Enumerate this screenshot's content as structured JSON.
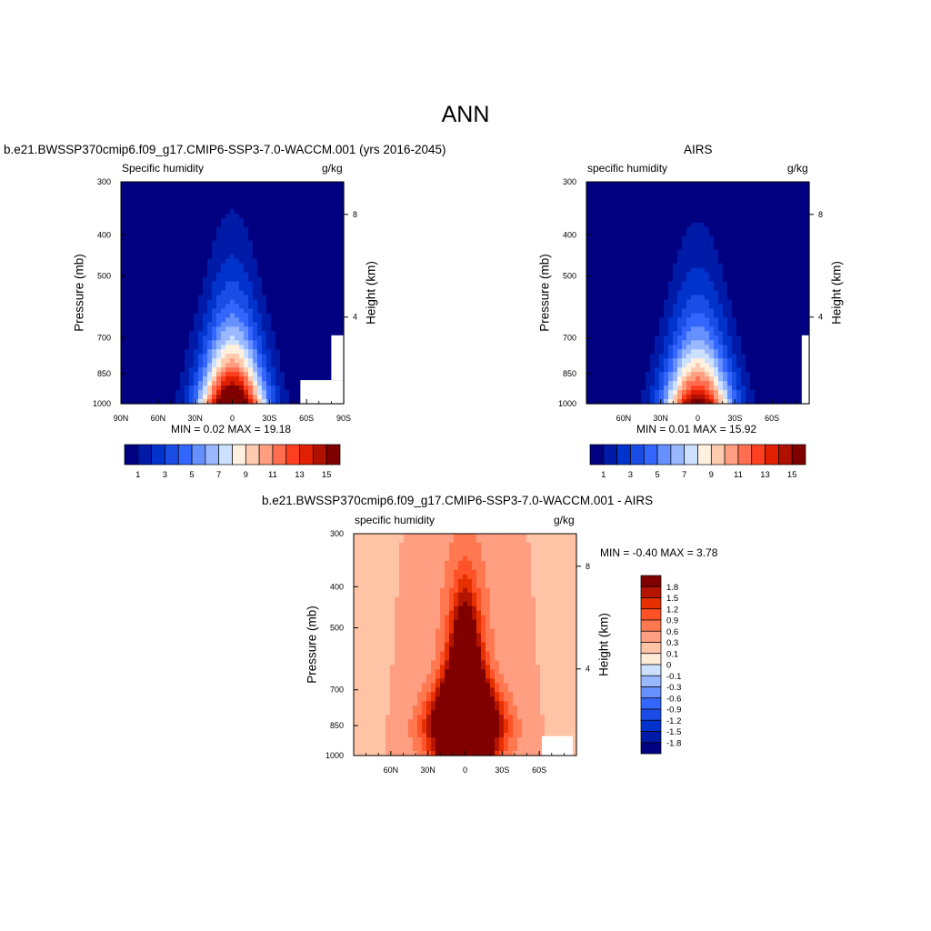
{
  "page_title": "ANN",
  "colors": {
    "seq_scale": [
      "#000080",
      "#001aa8",
      "#0033cc",
      "#1a4de6",
      "#3366ff",
      "#6690ff",
      "#99b8ff",
      "#cce0ff",
      "#fff0e0",
      "#ffcbb0",
      "#ff9e80",
      "#ff6e50",
      "#ff4020",
      "#e02000",
      "#b01000",
      "#800000"
    ],
    "diff_scale": [
      "#000080",
      "#001aa8",
      "#0033cc",
      "#1a4de6",
      "#3366ff",
      "#6690ff",
      "#99b8ff",
      "#cce0ff",
      "#ffebd7",
      "#ffc4a6",
      "#ff9e80",
      "#ff7850",
      "#ff5228",
      "#e63000",
      "#b41400",
      "#800000"
    ]
  },
  "chart_data": [
    {
      "type": "heatmap",
      "id": "model",
      "title": "b.e21.BWSSP370cmip6.f09_g17.CMIP6-SSP3-7.0-WACCM.001 (yrs 2016-2045)",
      "left_label": "Specific humidity",
      "unit_label": "g/kg",
      "ylabel": "Pressure (mb)",
      "ylabel_right": "Height (km)",
      "x_ticks": [
        "90N",
        "60N",
        "30N",
        "0",
        "30S",
        "60S",
        "90S"
      ],
      "y_ticks": [
        "300",
        "400",
        "500",
        "700",
        "850",
        "1000"
      ],
      "y_right_ticks": [
        "8",
        "4"
      ],
      "xlim": [
        90,
        -90
      ],
      "ylim": [
        1000,
        300
      ],
      "y_scale": "log",
      "min_max_text": "MIN =   0.02  MAX =  19.18",
      "min": 0.02,
      "max": 19.18,
      "colorbar_labels": [
        "1",
        "3",
        "5",
        "7",
        "9",
        "11",
        "13",
        "15"
      ],
      "colorbar_orientation": "horizontal",
      "peak_lat": 0,
      "peak_value": 19.18
    },
    {
      "type": "heatmap",
      "id": "obs",
      "title": "AIRS",
      "left_label": "specific humidity",
      "unit_label": "g/kg",
      "ylabel": "Pressure (mb)",
      "ylabel_right": "Height (km)",
      "x_ticks": [
        "60N",
        "30N",
        "0",
        "30S",
        "60S"
      ],
      "y_ticks": [
        "300",
        "400",
        "500",
        "700",
        "850",
        "1000"
      ],
      "y_right_ticks": [
        "8",
        "4"
      ],
      "xlim": [
        90,
        -90
      ],
      "ylim": [
        1000,
        300
      ],
      "y_scale": "log",
      "min_max_text": "MIN =   0.01  MAX =  15.92",
      "min": 0.01,
      "max": 15.92,
      "colorbar_labels": [
        "1",
        "3",
        "5",
        "7",
        "9",
        "11",
        "13",
        "15"
      ],
      "colorbar_orientation": "horizontal",
      "peak_lat": 0,
      "peak_value": 15.92
    },
    {
      "type": "heatmap",
      "id": "diff",
      "title": "b.e21.BWSSP370cmip6.f09_g17.CMIP6-SSP3-7.0-WACCM.001 - AIRS",
      "left_label": "specific humidity",
      "unit_label": "g/kg",
      "ylabel": "Pressure (mb)",
      "ylabel_right": "Height (km)",
      "x_ticks": [
        "60N",
        "30N",
        "0",
        "30S",
        "60S"
      ],
      "y_ticks": [
        "300",
        "400",
        "500",
        "700",
        "850",
        "1000"
      ],
      "y_right_ticks": [
        "8",
        "4"
      ],
      "xlim": [
        90,
        -90
      ],
      "ylim": [
        1000,
        300
      ],
      "y_scale": "log",
      "min_max_text": "MIN =  -0.40  MAX =   3.78",
      "min": -0.4,
      "max": 3.78,
      "colorbar_labels": [
        "1.8",
        "1.5",
        "1.2",
        "0.9",
        "0.6",
        "0.3",
        "0.1",
        "0",
        "-0.1",
        "-0.3",
        "-0.6",
        "-0.9",
        "-1.2",
        "-1.5",
        "-1.8"
      ],
      "colorbar_orientation": "vertical"
    }
  ]
}
